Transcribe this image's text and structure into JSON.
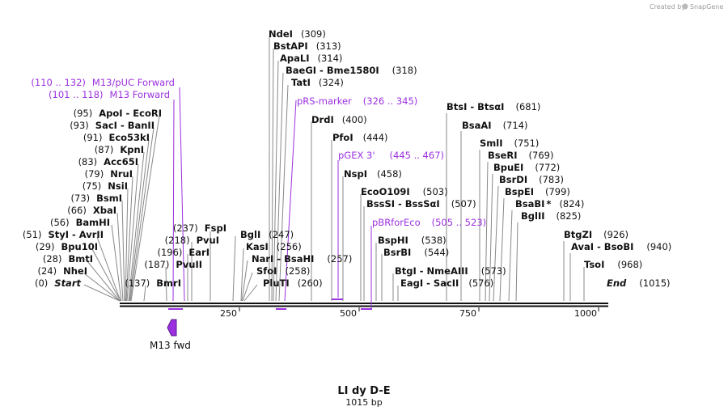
{
  "header": {
    "brand_text": "Created by",
    "brand_name": "SnapGene"
  },
  "map": {
    "title": "LI dy D-E",
    "length_label": "1015 bp",
    "start_label": "Start",
    "start_pos": "(0)",
    "end_label": "End",
    "end_pos": "(1015)",
    "ruler_ticks": [
      "250",
      "500",
      "750",
      "1000"
    ]
  },
  "sites": [
    {
      "pos": "(309)",
      "name": "NdeI",
      "star": false
    },
    {
      "pos": "(313)",
      "name": "BstAPI",
      "star": false
    },
    {
      "pos": "(314)",
      "name": "ApaLI",
      "star": false
    },
    {
      "pos": "(318)",
      "name": "BaeGI - Bme1580I",
      "star": false
    },
    {
      "pos": "(324)",
      "name": "TatI",
      "star": false
    },
    {
      "pos": "(95)",
      "name": "ApoI - EcoRI",
      "star": false
    },
    {
      "pos": "(93)",
      "name": "SacI - BanII",
      "star": false
    },
    {
      "pos": "(91)",
      "name": "Eco53kI",
      "star": false
    },
    {
      "pos": "(87)",
      "name": "KpnI",
      "star": false
    },
    {
      "pos": "(83)",
      "name": "Acc65I",
      "star": false
    },
    {
      "pos": "(79)",
      "name": "NruI",
      "star": false
    },
    {
      "pos": "(75)",
      "name": "NsiI",
      "star": false
    },
    {
      "pos": "(73)",
      "name": "BsmI",
      "star": false
    },
    {
      "pos": "(66)",
      "name": "XbaI",
      "star": false
    },
    {
      "pos": "(56)",
      "name": "BamHI",
      "star": false
    },
    {
      "pos": "(51)",
      "name": "StyI - AvrII",
      "star": false
    },
    {
      "pos": "(29)",
      "name": "Bpu10I",
      "star": false
    },
    {
      "pos": "(28)",
      "name": "BmtI",
      "star": false
    },
    {
      "pos": "(24)",
      "name": "NheI",
      "star": false
    },
    {
      "pos": "(137)",
      "name": "BmrI",
      "star": false
    },
    {
      "pos": "(187)",
      "name": "PvuII",
      "star": false
    },
    {
      "pos": "(196)",
      "name": "EarI",
      "star": false
    },
    {
      "pos": "(218)",
      "name": "PvuI",
      "star": false
    },
    {
      "pos": "(237)",
      "name": "FspI",
      "star": false
    },
    {
      "pos": "(247)",
      "name": "BglI",
      "star": false
    },
    {
      "pos": "(256)",
      "name": "KasI",
      "star": false
    },
    {
      "pos": "(257)",
      "name": "NarI - BsaHI",
      "star": false
    },
    {
      "pos": "(258)",
      "name": "SfoI",
      "star": false
    },
    {
      "pos": "(260)",
      "name": "PluTI",
      "star": false
    },
    {
      "pos": "(400)",
      "name": "DrdI",
      "star": false
    },
    {
      "pos": "(444)",
      "name": "PfoI",
      "star": false
    },
    {
      "pos": "(458)",
      "name": "NspI",
      "star": false
    },
    {
      "pos": "(503)",
      "name": "EcoO109I",
      "star": false
    },
    {
      "pos": "(507)",
      "name": "BssSI - BssSαI",
      "star": false
    },
    {
      "pos": "(538)",
      "name": "BspHI",
      "star": false
    },
    {
      "pos": "(544)",
      "name": "BsrBI",
      "star": false
    },
    {
      "pos": "(573)",
      "name": "BtgI - NmeAIII",
      "star": false
    },
    {
      "pos": "(576)",
      "name": "EagI - SacII",
      "star": false
    },
    {
      "pos": "(681)",
      "name": "BtsI - BtsαI",
      "star": false
    },
    {
      "pos": "(714)",
      "name": "BsaAI",
      "star": false
    },
    {
      "pos": "(751)",
      "name": "SmlI",
      "star": false
    },
    {
      "pos": "(769)",
      "name": "BseRI",
      "star": false
    },
    {
      "pos": "(772)",
      "name": "BpuEI",
      "star": false
    },
    {
      "pos": "(783)",
      "name": "BsrDI",
      "star": false
    },
    {
      "pos": "(799)",
      "name": "BspEI",
      "star": false
    },
    {
      "pos": "(824)",
      "name": "BsaBI",
      "star": true
    },
    {
      "pos": "(825)",
      "name": "BglII",
      "star": false
    },
    {
      "pos": "(926)",
      "name": "BtgZI",
      "star": false
    },
    {
      "pos": "(940)",
      "name": "AvaI - BsoBI",
      "star": false
    },
    {
      "pos": "(968)",
      "name": "TsoI",
      "star": false
    }
  ],
  "primers": [
    {
      "range": "(110 .. 132)",
      "name": "M13/pUC Forward"
    },
    {
      "range": "(101 .. 118)",
      "name": "M13 Forward"
    },
    {
      "range": "(326 .. 345)",
      "name": "pRS-marker"
    },
    {
      "range": "(445 .. 467)",
      "name": "pGEX 3'"
    },
    {
      "range": "(505 .. 523)",
      "name": "pBRforEco"
    }
  ],
  "features": [
    {
      "name": "M13 fwd",
      "color": "#9b30e0"
    }
  ],
  "colors": {
    "primer": "#9b30e0",
    "backbone": "#111111",
    "leader": "#888888"
  }
}
